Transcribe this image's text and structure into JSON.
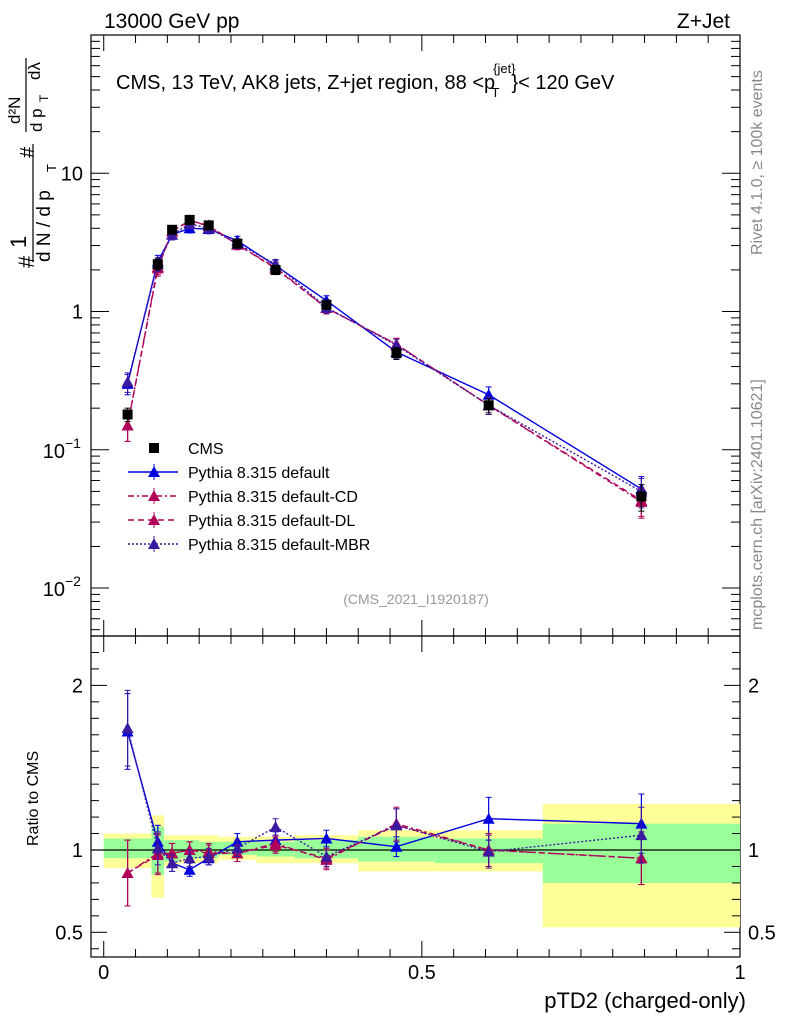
{
  "header": {
    "left": "13000 GeV pp",
    "right": "Z+Jet"
  },
  "side_labels": {
    "rivet": "Rivet 4.1.0, ≥ 100k events",
    "mcplots": "mcplots.cern.ch [arXiv:2401.10621]"
  },
  "colors": {
    "cms": "#000000",
    "default": "#0000e0",
    "cd": "#b0005a",
    "dl": "#b0005a",
    "mbr": "#3a1aa0",
    "band_outer": "#ffff99",
    "band_inner": "#99ff99"
  },
  "chart_data": [
    {
      "type": "line",
      "panel": "main",
      "title": "CMS, 13 TeV, AK8 jets, Z+jet region, 88 <p_T^{jet}< 120 GeV",
      "ylabel": "1/(dN/dp_T) d²N/(dp_T dλ)",
      "yscale": "log",
      "ylim": [
        0.0045,
        100
      ],
      "xlim": [
        -0.02,
        1.0
      ],
      "yticks": [
        {
          "value": 0.01,
          "base": "10",
          "exp": "−2"
        },
        {
          "value": 0.1,
          "base": "10",
          "exp": "−1"
        },
        {
          "value": 1,
          "label": "1"
        },
        {
          "value": 10,
          "label": "10"
        }
      ],
      "watermark": "(CMS_2021_I1920187)",
      "bins": [
        [
          0.0,
          0.075
        ],
        [
          0.075,
          0.095
        ],
        [
          0.095,
          0.12
        ],
        [
          0.12,
          0.15
        ],
        [
          0.15,
          0.18
        ],
        [
          0.18,
          0.24
        ],
        [
          0.24,
          0.3
        ],
        [
          0.3,
          0.4
        ],
        [
          0.4,
          0.52
        ],
        [
          0.52,
          0.69
        ],
        [
          0.69,
          1.0
        ]
      ],
      "x": [
        0.0375,
        0.085,
        0.1075,
        0.135,
        0.165,
        0.21,
        0.27,
        0.35,
        0.46,
        0.605,
        0.845
      ],
      "series": [
        {
          "name": "CMS",
          "key": "cms",
          "marker": "square",
          "values": [
            0.18,
            2.2,
            3.9,
            4.6,
            4.2,
            3.1,
            2.0,
            1.12,
            0.5,
            0.21,
            0.046
          ],
          "err": [
            0.02,
            0.2,
            0.25,
            0.25,
            0.25,
            0.2,
            0.15,
            0.08,
            0.05,
            0.025,
            0.01
          ]
        },
        {
          "name": "Pythia 8.315 default",
          "key": "default",
          "marker": "triangle",
          "dash": "",
          "values": [
            0.3,
            2.3,
            3.6,
            4.0,
            3.95,
            3.25,
            2.15,
            1.2,
            0.51,
            0.25,
            0.052
          ],
          "err": [
            0.05,
            0.25,
            0.3,
            0.3,
            0.3,
            0.25,
            0.18,
            0.1,
            0.05,
            0.035,
            0.012
          ]
        },
        {
          "name": "Pythia 8.315 default-CD",
          "key": "cd",
          "marker": "triangle",
          "dash": "6,3,2,3",
          "values": [
            0.15,
            2.1,
            3.8,
            4.55,
            4.2,
            3.05,
            2.08,
            1.06,
            0.58,
            0.21,
            0.042
          ],
          "err": [
            0.035,
            0.25,
            0.3,
            0.3,
            0.3,
            0.25,
            0.18,
            0.1,
            0.06,
            0.03,
            0.01
          ]
        },
        {
          "name": "Pythia 8.315 default-DL",
          "key": "dl",
          "marker": "triangle",
          "dash": "6,4",
          "values": [
            0.15,
            2.05,
            3.8,
            4.55,
            4.15,
            3.05,
            2.05,
            1.06,
            0.58,
            0.21,
            0.043
          ],
          "err": [
            0.035,
            0.25,
            0.3,
            0.3,
            0.3,
            0.25,
            0.18,
            0.1,
            0.06,
            0.03,
            0.01
          ]
        },
        {
          "name": "Pythia 8.315 default-MBR",
          "key": "mbr",
          "marker": "triangle",
          "dash": "2,2",
          "values": [
            0.31,
            2.2,
            3.6,
            4.3,
            4.0,
            3.1,
            2.2,
            1.07,
            0.57,
            0.21,
            0.05
          ],
          "err": [
            0.05,
            0.25,
            0.3,
            0.3,
            0.3,
            0.25,
            0.18,
            0.1,
            0.06,
            0.03,
            0.012
          ]
        }
      ],
      "legend": {
        "position": "middle-left"
      }
    },
    {
      "type": "line",
      "panel": "ratio",
      "ylabel": "Ratio to CMS",
      "xlabel": "pTD2 (charged-only)",
      "ylim": [
        0.35,
        2.3
      ],
      "xlim": [
        -0.02,
        1.0
      ],
      "xticks": [
        {
          "value": 0,
          "label": "0"
        },
        {
          "value": 0.5,
          "label": "0.5"
        },
        {
          "value": 1,
          "label": "1"
        }
      ],
      "yticks": [
        {
          "value": 0.5,
          "label": "0.5"
        },
        {
          "value": 1,
          "label": "1"
        },
        {
          "value": 2,
          "label": "2"
        }
      ],
      "band_inner": [
        [
          0.95,
          1.07
        ],
        [
          0.85,
          1.14
        ],
        [
          0.93,
          1.06
        ],
        [
          0.95,
          1.06
        ],
        [
          0.95,
          1.05
        ],
        [
          0.97,
          1.05
        ],
        [
          0.96,
          1.05
        ],
        [
          0.95,
          1.06
        ],
        [
          0.93,
          1.08
        ],
        [
          0.92,
          1.07
        ],
        [
          0.8,
          1.16
        ]
      ],
      "band_outer": [
        [
          0.89,
          1.1
        ],
        [
          0.71,
          1.21
        ],
        [
          0.9,
          1.09
        ],
        [
          0.92,
          1.09
        ],
        [
          0.92,
          1.09
        ],
        [
          0.94,
          1.08
        ],
        [
          0.92,
          1.08
        ],
        [
          0.92,
          1.09
        ],
        [
          0.87,
          1.12
        ],
        [
          0.87,
          1.12
        ],
        [
          0.53,
          1.28
        ]
      ],
      "series": [
        {
          "key": "default",
          "dash": "",
          "values": [
            1.72,
            1.05,
            0.92,
            0.88,
            0.95,
            1.05,
            1.06,
            1.07,
            1.02,
            1.19,
            1.16
          ],
          "err": [
            0.23,
            0.1,
            0.05,
            0.04,
            0.04,
            0.05,
            0.05,
            0.05,
            0.06,
            0.13,
            0.18
          ]
        },
        {
          "key": "cd",
          "dash": "6,3,2,3",
          "values": [
            0.86,
            0.98,
            0.98,
            1.0,
            0.99,
            0.98,
            1.04,
            0.94,
            1.16,
            1.0,
            0.95
          ],
          "err": [
            0.2,
            0.12,
            0.06,
            0.05,
            0.05,
            0.05,
            0.05,
            0.06,
            0.1,
            0.1,
            0.16
          ]
        },
        {
          "key": "dl",
          "dash": "6,4",
          "values": [
            0.86,
            0.97,
            0.98,
            1.0,
            0.98,
            0.98,
            1.03,
            0.95,
            1.15,
            1.0,
            0.95
          ],
          "err": [
            0.2,
            0.12,
            0.06,
            0.05,
            0.05,
            0.05,
            0.05,
            0.06,
            0.1,
            0.1,
            0.16
          ]
        },
        {
          "key": "mbr",
          "dash": "2,2",
          "values": [
            1.74,
            1.01,
            0.92,
            0.95,
            0.96,
            1.01,
            1.14,
            0.96,
            1.15,
            0.99,
            1.09
          ],
          "err": [
            0.23,
            0.1,
            0.05,
            0.05,
            0.05,
            0.05,
            0.05,
            0.06,
            0.1,
            0.1,
            0.17
          ]
        }
      ]
    }
  ]
}
